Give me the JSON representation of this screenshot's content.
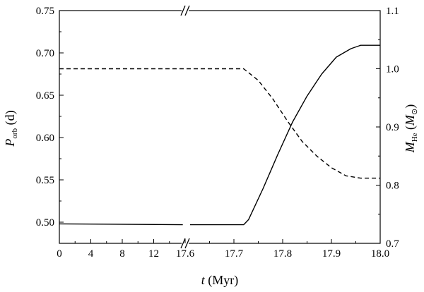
{
  "chart_data": {
    "type": "line",
    "x_axis": {
      "label_var": "t",
      "label_unit": " (Myr)",
      "broken": true,
      "segments": [
        {
          "range": [
            0,
            16
          ],
          "ticks": [
            0,
            4,
            8,
            12
          ],
          "tick_labels": [
            "0",
            "4",
            "8",
            "12"
          ]
        },
        {
          "range": [
            17.6,
            18.0
          ],
          "ticks": [
            17.6,
            17.7,
            17.8,
            17.9,
            18.0
          ],
          "tick_labels": [
            "17.6",
            "17.7",
            "17.8",
            "17.9",
            "18.0"
          ]
        }
      ]
    },
    "y_left": {
      "label_var": "P",
      "label_sub": "orb",
      "label_unit": " (d)",
      "range": [
        0.475,
        0.75
      ],
      "ticks": [
        0.5,
        0.55,
        0.6,
        0.65,
        0.7,
        0.75
      ],
      "tick_labels": [
        "0.50",
        "0.55",
        "0.60",
        "0.65",
        "0.70",
        "0.75"
      ]
    },
    "y_right": {
      "label_var": "M",
      "label_sub": "He",
      "label_paren_open": "(",
      "label_paren_close": ")",
      "label_unit_var": "M",
      "label_unit_sym": "⊙",
      "range": [
        0.7,
        1.1
      ],
      "ticks": [
        0.7,
        0.8,
        0.9,
        1.0,
        1.1
      ],
      "tick_labels": [
        "0.7",
        "0.8",
        "0.9",
        "1.0",
        "1.1"
      ]
    },
    "series": [
      {
        "axis": "right",
        "style": "dashed",
        "points": [
          [
            0,
            1.0
          ],
          [
            16,
            1.0
          ],
          [
            17.6,
            1.0
          ],
          [
            17.72,
            1.0
          ],
          [
            17.75,
            0.98
          ],
          [
            17.78,
            0.948
          ],
          [
            17.81,
            0.91
          ],
          [
            17.84,
            0.875
          ],
          [
            17.87,
            0.85
          ],
          [
            17.9,
            0.83
          ],
          [
            17.93,
            0.816
          ],
          [
            17.96,
            0.812
          ],
          [
            18.0,
            0.812
          ]
        ]
      },
      {
        "axis": "left",
        "style": "solid",
        "points": [
          [
            0,
            0.498
          ],
          [
            15.7,
            0.497
          ],
          [
            17.61,
            0.497
          ],
          [
            17.72,
            0.497
          ],
          [
            17.73,
            0.503
          ],
          [
            17.76,
            0.54
          ],
          [
            17.79,
            0.58
          ],
          [
            17.82,
            0.618
          ],
          [
            17.85,
            0.649
          ],
          [
            17.88,
            0.675
          ],
          [
            17.91,
            0.695
          ],
          [
            17.94,
            0.705
          ],
          [
            17.96,
            0.709
          ],
          [
            18.0,
            0.709
          ]
        ]
      }
    ],
    "grid": false
  }
}
